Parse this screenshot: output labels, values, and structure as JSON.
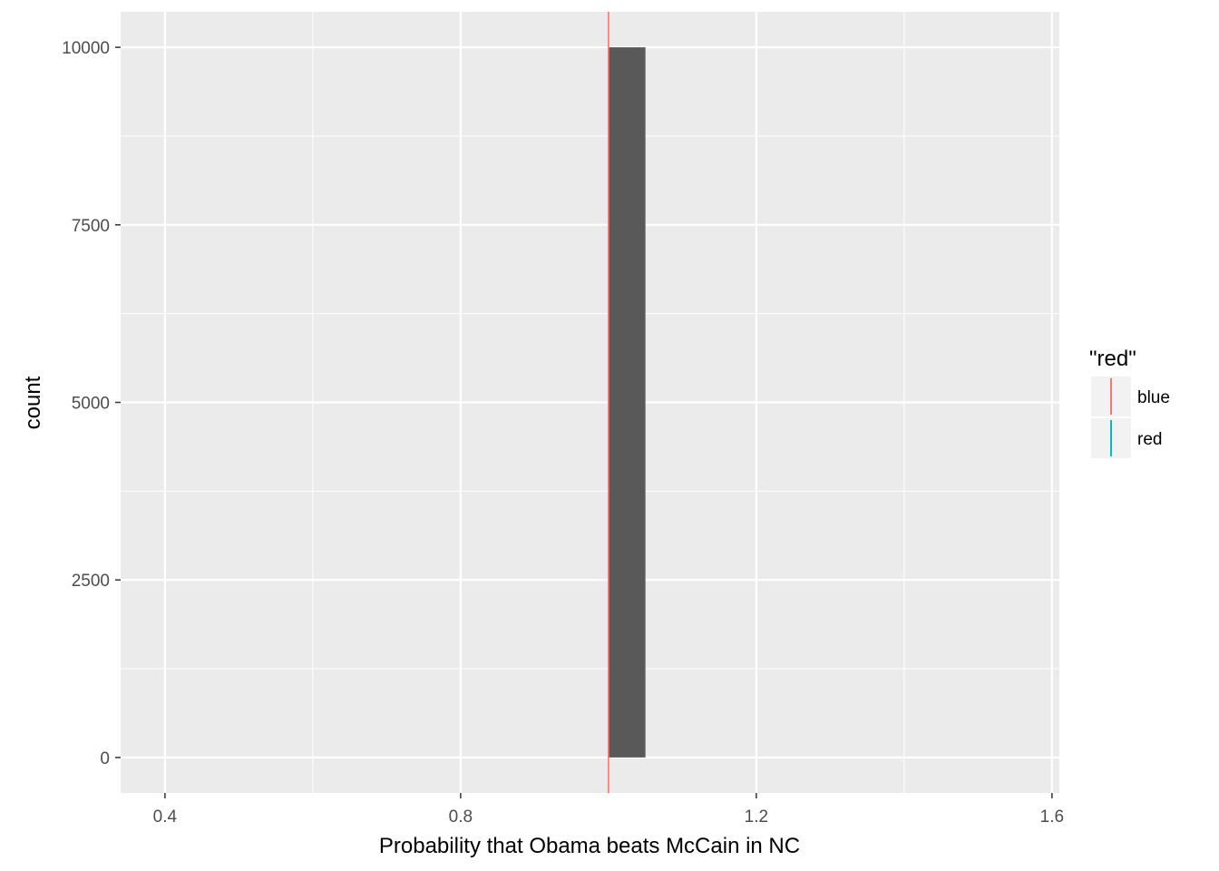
{
  "chart_data": {
    "type": "bar",
    "xlabel": "Probability that Obama beats McCain in NC",
    "ylabel": "count",
    "xlim": [
      0.34,
      1.61
    ],
    "ylim": [
      -500,
      10500
    ],
    "x_ticks": [
      0.4,
      0.8,
      1.2,
      1.6
    ],
    "x_tick_labels": [
      "0.4",
      "0.8",
      "1.2",
      "1.6"
    ],
    "x_minor_ticks": [
      0.6,
      1.0,
      1.4
    ],
    "y_ticks": [
      0,
      2500,
      5000,
      7500,
      10000
    ],
    "y_tick_labels": [
      "0",
      "2500",
      "5000",
      "7500",
      "10000"
    ],
    "y_minor_ticks": [
      1250,
      3750,
      6250,
      8750
    ],
    "bars": [
      {
        "xmin": 1.0,
        "xmax": 1.05,
        "count": 10000
      }
    ],
    "vlines": [
      {
        "x": 1.0,
        "group": "blue"
      }
    ],
    "grid": true,
    "legend": {
      "title": "\"red\"",
      "placement": "right",
      "entries": [
        {
          "label": "blue",
          "color": "#F8766D"
        },
        {
          "label": "red",
          "color": "#00BFC4"
        }
      ]
    },
    "colors": {
      "panel": "#EBEBEB",
      "grid": "#FFFFFF",
      "bar": "#595959"
    }
  }
}
